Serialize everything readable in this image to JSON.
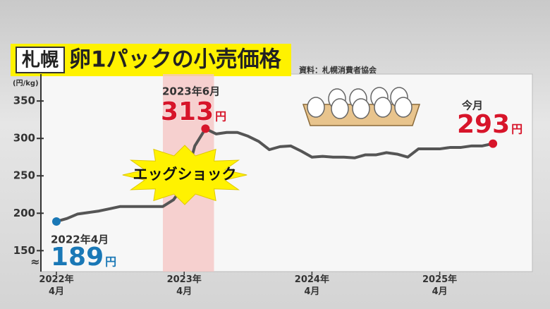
{
  "header": {
    "city": "札幌",
    "title": "卵1パックの小売価格",
    "source": "資料：札幌消費者協会"
  },
  "chart_data": {
    "type": "line",
    "y_unit_label": "(円/kg)",
    "axis_break": "≈",
    "unit": "円",
    "categories": [
      "2022年\n4月",
      null,
      null,
      null,
      null,
      null,
      null,
      null,
      null,
      null,
      null,
      null,
      "2023年\n4月",
      null,
      null,
      null,
      null,
      null,
      null,
      null,
      null,
      null,
      null,
      null,
      "2024年\n4月",
      null,
      null,
      null,
      null,
      null,
      null,
      null,
      null,
      null,
      null,
      null,
      "2025年\n4月",
      null,
      null,
      null,
      null,
      null
    ],
    "series": [
      {
        "color": "#555555",
        "values": [
          189,
          193,
          199,
          201,
          203,
          206,
          209,
          209,
          209,
          209,
          209,
          218,
          238,
          290,
          313,
          306,
          308,
          308,
          303,
          296,
          285,
          289,
          290,
          283,
          275,
          276,
          275,
          275,
          274,
          278,
          278,
          281,
          279,
          275,
          286,
          286,
          286,
          288,
          288,
          290,
          290,
          293
        ]
      }
    ],
    "ylim": [
      122,
      386
    ],
    "yticks": [
      150,
      200,
      250,
      300,
      350
    ],
    "grid": false,
    "shade": {
      "label": "エッグショック",
      "from": 10,
      "to": 14.8,
      "color": "#f5c6c4"
    },
    "annotations": [
      {
        "index": 0,
        "label": "2022年4月",
        "color": "#1a78b6"
      },
      {
        "index": 14,
        "label": "2023年6月",
        "color": "#d7152a"
      },
      {
        "index": 41,
        "label": "今月",
        "color": "#d7152a"
      }
    ]
  }
}
